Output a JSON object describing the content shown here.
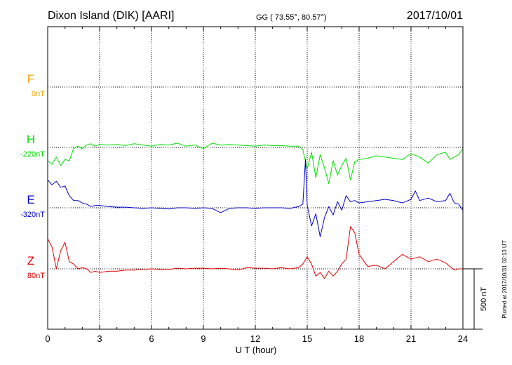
{
  "header": {
    "station": "Dixon Island (DIK)  [AARI]",
    "coords": "GG ( 73.55°,  80.57°)",
    "date": "2017/10/01"
  },
  "plotted_note": "Plotted at 2017/10/31 02:13 UT",
  "scale_label": "500 nT",
  "chart_data": {
    "type": "line",
    "xlabel": "U T (hour)",
    "xlim": [
      0,
      24
    ],
    "x_ticks": [
      0,
      3,
      6,
      9,
      12,
      15,
      18,
      21,
      24
    ],
    "grid": true,
    "colors": {
      "F": "#f5a300",
      "H": "#00e000",
      "E": "#0000cc",
      "Z": "#e00000"
    },
    "components": [
      {
        "name": "F",
        "baseline_label": "0nT"
      },
      {
        "name": "H",
        "baseline_label": "-220nT"
      },
      {
        "name": "E",
        "baseline_label": "-320nT"
      },
      {
        "name": "Z",
        "baseline_label": "80nT"
      }
    ],
    "unit": "nT",
    "scale_bar_nT": 500,
    "series": [
      {
        "name": "H",
        "x": [
          0,
          0.25,
          0.5,
          0.75,
          1,
          1.25,
          1.5,
          1.75,
          2,
          2.25,
          2.5,
          2.75,
          3,
          3.5,
          4,
          4.5,
          5,
          5.5,
          6,
          6.5,
          7,
          7.5,
          8,
          8.5,
          9,
          9.5,
          10,
          10.5,
          11,
          11.5,
          12,
          12.5,
          13,
          13.5,
          14,
          14.5,
          14.75,
          15,
          15.25,
          15.5,
          15.75,
          16,
          16.25,
          16.5,
          16.75,
          17,
          17.25,
          17.5,
          17.75,
          18,
          18.5,
          19,
          19.5,
          20,
          20.5,
          21,
          21.5,
          22,
          22.5,
          23,
          23.25,
          23.5,
          23.75,
          24
        ],
        "values": [
          -110,
          -140,
          -80,
          -150,
          -100,
          -110,
          -10,
          10,
          -10,
          20,
          30,
          10,
          25,
          20,
          25,
          15,
          30,
          20,
          10,
          25,
          20,
          35,
          10,
          20,
          -10,
          35,
          20,
          25,
          20,
          15,
          10,
          20,
          15,
          15,
          10,
          10,
          -20,
          -180,
          -40,
          -250,
          -60,
          -170,
          -300,
          -110,
          -230,
          -150,
          -90,
          -270,
          -120,
          -100,
          -90,
          -70,
          -80,
          -90,
          -100,
          -50,
          -80,
          -130,
          -60,
          -40,
          -100,
          -80,
          -60,
          -10
        ]
      },
      {
        "name": "E",
        "x": [
          0,
          0.25,
          0.5,
          0.75,
          1,
          1.25,
          1.5,
          1.75,
          2,
          2.25,
          2.5,
          2.75,
          3,
          3.5,
          4,
          4.5,
          5,
          5.5,
          6,
          6.5,
          7,
          7.5,
          8,
          8.5,
          9,
          9.5,
          10,
          10.5,
          11,
          11.5,
          12,
          12.5,
          13,
          13.5,
          14,
          14.5,
          14.75,
          14.9,
          15,
          15.25,
          15.5,
          15.75,
          16,
          16.25,
          16.5,
          16.75,
          17,
          17.25,
          17.5,
          17.75,
          18,
          18.5,
          19,
          19.5,
          20,
          20.5,
          21,
          21.25,
          21.5,
          22,
          22.5,
          23,
          23.25,
          23.5,
          23.75,
          24
        ],
        "values": [
          230,
          190,
          220,
          170,
          180,
          100,
          60,
          60,
          40,
          30,
          10,
          20,
          20,
          10,
          5,
          5,
          0,
          -5,
          0,
          -5,
          -10,
          0,
          0,
          -5,
          0,
          -5,
          -40,
          -5,
          0,
          0,
          -5,
          0,
          0,
          0,
          -5,
          10,
          30,
          400,
          20,
          -150,
          -50,
          -240,
          -80,
          10,
          -60,
          50,
          -20,
          100,
          50,
          60,
          40,
          50,
          60,
          70,
          60,
          40,
          70,
          140,
          60,
          80,
          50,
          60,
          120,
          40,
          30,
          -20
        ]
      },
      {
        "name": "Z",
        "x": [
          0,
          0.25,
          0.5,
          0.75,
          1,
          1.25,
          1.5,
          1.75,
          2,
          2.25,
          2.5,
          2.75,
          3,
          3.5,
          4,
          4.5,
          5,
          5.5,
          6,
          6.5,
          7,
          7.5,
          8,
          8.5,
          9,
          9.5,
          10,
          10.5,
          11,
          11.5,
          12,
          12.5,
          13,
          13.5,
          14,
          14.5,
          14.75,
          15,
          15.25,
          15.5,
          15.75,
          16,
          16.25,
          16.5,
          16.75,
          17,
          17.25,
          17.5,
          17.75,
          18,
          18.5,
          19,
          19.5,
          20,
          20.5,
          21,
          21.5,
          22,
          22.5,
          23,
          23.25,
          23.5,
          23.75,
          24
        ],
        "values": [
          250,
          180,
          0,
          150,
          220,
          60,
          40,
          0,
          10,
          0,
          -30,
          -20,
          -30,
          -20,
          -20,
          -10,
          -10,
          -5,
          0,
          -5,
          -5,
          5,
          0,
          5,
          5,
          0,
          5,
          0,
          -10,
          10,
          5,
          5,
          0,
          10,
          0,
          10,
          40,
          100,
          40,
          -60,
          -30,
          -80,
          -20,
          -60,
          -20,
          40,
          80,
          350,
          300,
          120,
          20,
          30,
          0,
          60,
          120,
          80,
          100,
          60,
          80,
          50,
          20,
          -10,
          0,
          0
        ]
      }
    ]
  }
}
